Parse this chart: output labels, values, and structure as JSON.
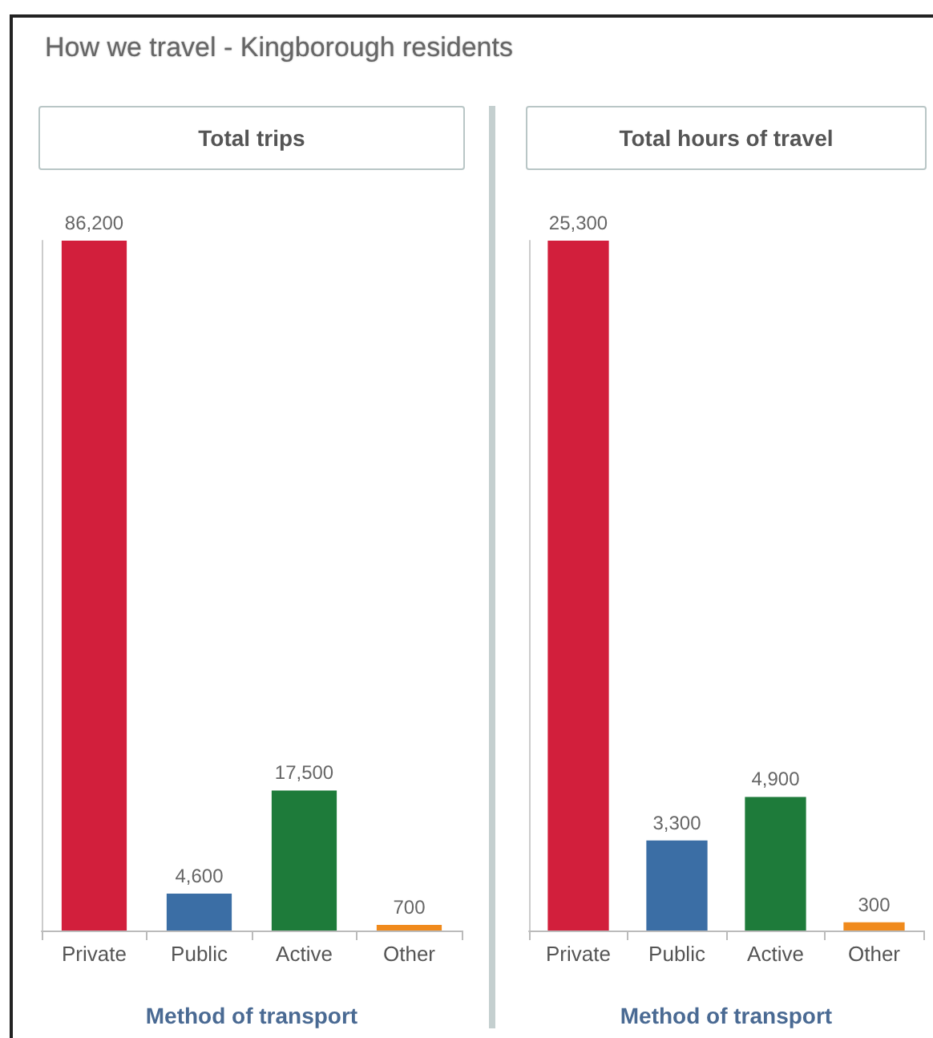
{
  "chart_data": [
    {
      "type": "bar",
      "title": "How we travel - Kingborough residents",
      "subtitle": "Total trips",
      "xlabel": "Method of transport",
      "categories": [
        "Private",
        "Public",
        "Active",
        "Other"
      ],
      "values": [
        86200,
        4600,
        17500,
        700
      ],
      "value_labels": [
        "86,200",
        "4,600",
        "17,500",
        "700"
      ],
      "colors": [
        "#d21f3c",
        "#3b6ea5",
        "#1e7b3a",
        "#f08a1c"
      ],
      "grid": false
    },
    {
      "type": "bar",
      "title": "Total hours of travel",
      "xlabel": "Method of transport",
      "categories": [
        "Private",
        "Public",
        "Active",
        "Other"
      ],
      "values": [
        25300,
        3300,
        4900,
        300
      ],
      "value_labels": [
        "25,300",
        "3,300",
        "4,900",
        "300"
      ],
      "colors": [
        "#d21f3c",
        "#3b6ea5",
        "#1e7b3a",
        "#f08a1c"
      ],
      "grid": false
    }
  ]
}
